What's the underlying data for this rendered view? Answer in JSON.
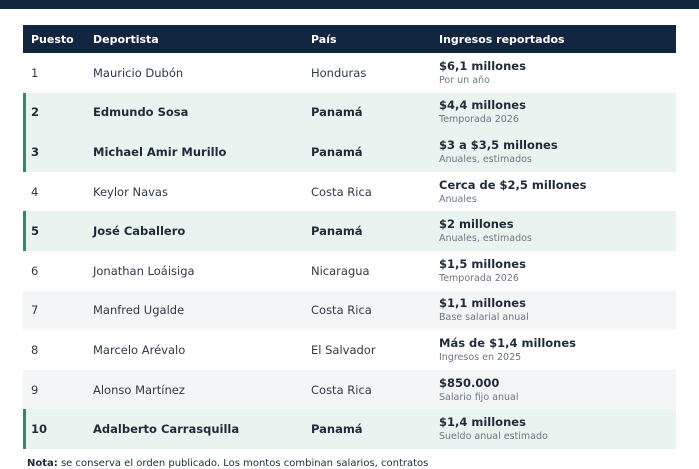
{
  "header": {
    "col_rank": "Puesto",
    "col_athlete": "Deportista",
    "col_country": "País",
    "col_income": "Ingresos reportados"
  },
  "rows": [
    {
      "rank": "1",
      "athlete": "Mauricio Dubón",
      "country": "Honduras",
      "amount": "$6,1 millones",
      "detail": "Por un año",
      "highlight": false
    },
    {
      "rank": "2",
      "athlete": "Edmundo Sosa",
      "country": "Panamá",
      "amount": "$4,4 millones",
      "detail": "Temporada 2026",
      "highlight": true
    },
    {
      "rank": "3",
      "athlete": "Michael Amir Murillo",
      "country": "Panamá",
      "amount": "$3 a $3,5 millones",
      "detail": "Anuales, estimados",
      "highlight": true
    },
    {
      "rank": "4",
      "athlete": "Keylor Navas",
      "country": "Costa Rica",
      "amount": "Cerca de $2,5 millones",
      "detail": "Anuales",
      "highlight": false
    },
    {
      "rank": "5",
      "athlete": "José Caballero",
      "country": "Panamá",
      "amount": "$2 millones",
      "detail": "Anuales, estimados",
      "highlight": true
    },
    {
      "rank": "6",
      "athlete": "Jonathan Loáisiga",
      "country": "Nicaragua",
      "amount": "$1,5 millones",
      "detail": "Temporada 2026",
      "highlight": false
    },
    {
      "rank": "7",
      "athlete": "Manfred Ugalde",
      "country": "Costa Rica",
      "amount": "$1,1 millones",
      "detail": "Base salarial anual",
      "highlight": false
    },
    {
      "rank": "8",
      "athlete": "Marcelo Arévalo",
      "country": "El Salvador",
      "amount": "Más de $1,4 millones",
      "detail": "Ingresos en 2025",
      "highlight": false
    },
    {
      "rank": "9",
      "athlete": "Alonso Martínez",
      "country": "Costa Rica",
      "amount": "$850.000",
      "detail": "Salario fijo anual",
      "highlight": false
    },
    {
      "rank": "10",
      "athlete": "Adalberto Carrasquilla",
      "country": "Panamá",
      "amount": "$1,4 millones",
      "detail": "Sueldo anual estimado",
      "highlight": true
    }
  ],
  "note": {
    "label": "Nota:",
    "text": "se conserva el orden publicado. Los montos combinan salarios, contratos"
  }
}
